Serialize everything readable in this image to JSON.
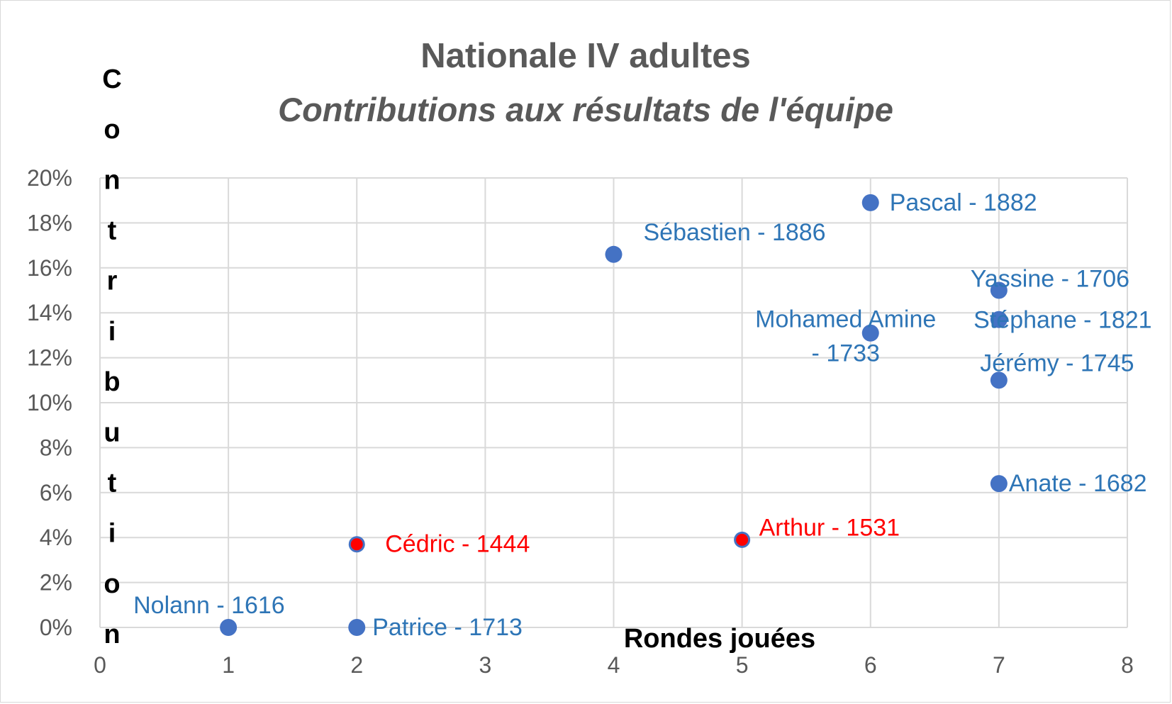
{
  "chart_data": {
    "type": "scatter",
    "title": "Nationale IV adultes",
    "subtitle": "Contributions aux résultats de l'équipe",
    "xlabel": "Rondes jouées",
    "ylabel": "Contribution",
    "xlim": [
      0,
      8
    ],
    "ylim": [
      0,
      0.2
    ],
    "x_ticks": [
      "0",
      "1",
      "2",
      "3",
      "4",
      "5",
      "6",
      "7",
      "8"
    ],
    "y_ticks": [
      "0%",
      "2%",
      "4%",
      "6%",
      "8%",
      "10%",
      "12%",
      "14%",
      "16%",
      "18%",
      "20%"
    ],
    "grid": true,
    "colors": {
      "default": "#4472c4",
      "label_default": "#2e75b6",
      "highlight": "#ff0000"
    },
    "points": [
      {
        "label": "Nolann - 1616",
        "x": 1,
        "y": 0.0,
        "highlight": false
      },
      {
        "label": "Patrice - 1713",
        "x": 2,
        "y": 0.0,
        "highlight": false
      },
      {
        "label": "Cédric - 1444",
        "x": 2,
        "y": 0.037,
        "highlight": true
      },
      {
        "label": "Sébastien - 1886",
        "x": 4,
        "y": 0.166,
        "highlight": false
      },
      {
        "label": "Arthur - 1531",
        "x": 5,
        "y": 0.039,
        "highlight": true
      },
      {
        "label": "Pascal - 1882",
        "x": 6,
        "y": 0.189,
        "highlight": false
      },
      {
        "label": "Mohamed Amine - 1733",
        "x": 6,
        "y": 0.131,
        "highlight": false
      },
      {
        "label": "Yassine - 1706",
        "x": 7,
        "y": 0.15,
        "highlight": false
      },
      {
        "label": "Stéphane - 1821",
        "x": 7,
        "y": 0.137,
        "highlight": false
      },
      {
        "label": "Jérémy - 1745",
        "x": 7,
        "y": 0.11,
        "highlight": false
      },
      {
        "label": "Anate - 1682",
        "x": 7,
        "y": 0.064,
        "highlight": false
      }
    ]
  }
}
